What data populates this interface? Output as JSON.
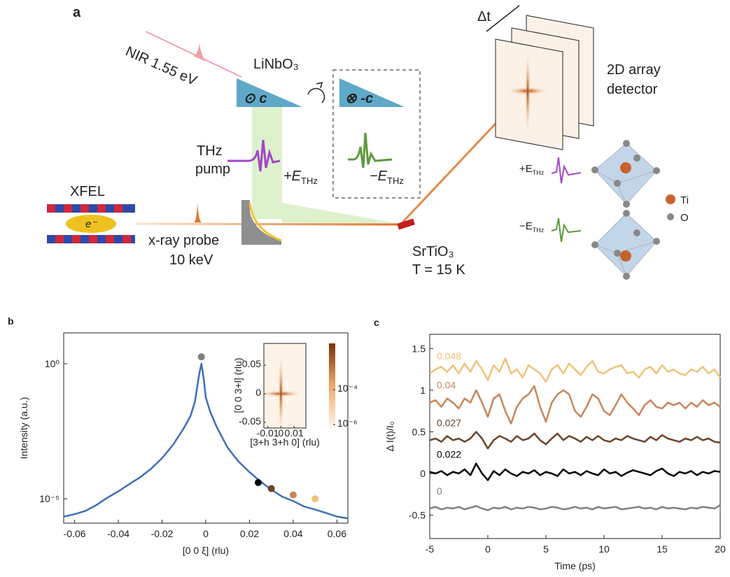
{
  "diagram": {
    "panel": "a",
    "nir": "NIR 1.55 eV",
    "crystal": "LiNbO₃",
    "axis_plus": "⊙ c",
    "axis_minus": "⊗ -c",
    "thz_pump": [
      "THz",
      "pump"
    ],
    "field_plus": {
      "sign": "+E",
      "sub": "THz"
    },
    "field_minus": {
      "sign": "−E",
      "sub": "THz"
    },
    "xfel": "XFEL",
    "electron": "e⁻",
    "probe": [
      "x-ray probe",
      "10 keV"
    ],
    "sample": [
      "SrTiO₃",
      "T = 15 K"
    ],
    "delay": "Δt",
    "detector": [
      "2D array",
      "detector"
    ],
    "small_plus": {
      "sign": "+E",
      "sub": "THz"
    },
    "small_minus": {
      "sign": "−E",
      "sub": "THz"
    },
    "atoms": [
      "Ti",
      "O"
    ]
  },
  "chart_data": [
    {
      "type": "line",
      "panel": "b",
      "xlabel": "[0  0 ξ] (rlu)",
      "ylabel": "Intensity (a.u.)",
      "log_y": true,
      "xlim": [
        -0.065,
        0.065
      ],
      "ylim": [
        1.26e-06,
        13.8
      ],
      "xticks": [
        -0.06,
        -0.04,
        -0.02,
        0,
        0.02,
        0.04,
        0.06
      ],
      "yticks": [
        {
          "value": 1e-05,
          "label": "10⁻⁵"
        },
        {
          "value": 1,
          "label": "10⁰"
        }
      ],
      "x": [
        -0.065,
        -0.06,
        -0.055,
        -0.05,
        -0.045,
        -0.04,
        -0.035,
        -0.03,
        -0.025,
        -0.02,
        -0.015,
        -0.01,
        -0.007,
        -0.005,
        -0.003,
        -0.002,
        -0.001,
        0,
        0.002,
        0.005,
        0.01,
        0.015,
        0.02,
        0.025,
        0.03,
        0.035,
        0.04,
        0.045,
        0.05,
        0.055,
        0.06,
        0.065
      ],
      "series": [
        {
          "color": "#3d6fb8",
          "values": [
            2.2e-06,
            2.7e-06,
            3.6e-06,
            5.9e-06,
            1.1e-05,
            1.9e-05,
            3.5e-05,
            6.3e-05,
            0.00013,
            0.00032,
            0.001,
            0.0042,
            0.0115,
            0.038,
            0.41,
            1,
            0.3,
            0.057,
            0.017,
            0.0046,
            0.00078,
            0.00024,
            9.7e-05,
            4.4e-05,
            2.2e-05,
            1.2e-05,
            8.3e-06,
            5.2e-06,
            4e-06,
            3e-06,
            2.2e-06,
            1.9e-06
          ]
        }
      ],
      "points": {
        "x": [
          -0.002,
          0.024,
          0.03,
          0.04,
          0.05
        ],
        "values": [
          1.8,
          4e-05,
          2.4e-05,
          1.4e-05,
          1e-05
        ],
        "colors": [
          "#808080",
          "#000000",
          "#6b4328",
          "#c8865a",
          "#efc27a"
        ]
      },
      "inset": {
        "xlabel": "[3+h 3+h 0] (rlu)",
        "ylabel": "[0 0 3+l] (rlu)",
        "xlim": [
          -0.013,
          0.019
        ],
        "ylim": [
          -0.06,
          0.088
        ],
        "xticks": [
          -0.01,
          0,
          0.01
        ],
        "yticks": [
          -0.05,
          0,
          0.05
        ],
        "clim": [
          6.3e-07,
          0.044
        ],
        "cticks": [
          {
            "value": 1e-06,
            "label": "10⁻⁶"
          },
          {
            "value": 0.0001,
            "label": "10⁻⁴"
          }
        ]
      }
    },
    {
      "type": "line",
      "panel": "c",
      "xlabel": "Time (ps)",
      "ylabel": "Δ I(t)/I₀",
      "xlim": [
        -5,
        20
      ],
      "ylim": [
        -0.78,
        1.67
      ],
      "xticks": [
        -5,
        0,
        5,
        10,
        15,
        20
      ],
      "yticks": [
        -0.5,
        0,
        0.5,
        1,
        1.5
      ],
      "x": [
        -5,
        -4.5,
        -4,
        -3.5,
        -3,
        -2.5,
        -2,
        -1.5,
        -1,
        -0.5,
        0,
        0.5,
        1,
        1.5,
        2,
        2.5,
        3,
        3.5,
        4,
        4.5,
        5,
        5.5,
        6,
        6.5,
        7,
        7.5,
        8,
        8.5,
        9,
        9.5,
        10,
        10.5,
        11,
        11.5,
        12,
        12.5,
        13,
        13.5,
        14,
        14.5,
        15,
        15.5,
        16,
        16.5,
        17,
        17.5,
        18,
        18.5,
        19,
        19.5,
        20
      ],
      "series": [
        {
          "name": "0.048",
          "color": "#efc27a",
          "values": [
            1.2,
            1.25,
            1.28,
            1.22,
            1.3,
            1.2,
            1.32,
            1.22,
            1.35,
            1.25,
            1.12,
            1.3,
            1.22,
            1.38,
            1.2,
            1.25,
            1.15,
            1.3,
            1.25,
            1.2,
            1.1,
            1.25,
            1.3,
            1.2,
            1.32,
            1.25,
            1.18,
            1.28,
            1.35,
            1.22,
            1.2,
            1.25,
            1.28,
            1.3,
            1.2,
            1.22,
            1.15,
            1.25,
            1.28,
            1.2,
            1.3,
            1.22,
            1.25,
            1.2,
            1.18,
            1.25,
            1.22,
            1.28,
            1.2,
            1.25,
            1.15
          ]
        },
        {
          "name": "0.04",
          "color": "#c8865a",
          "values": [
            0.85,
            0.88,
            0.8,
            0.9,
            0.85,
            0.78,
            0.9,
            0.85,
            1.0,
            0.85,
            0.68,
            0.9,
            0.95,
            0.75,
            0.6,
            0.8,
            0.9,
            0.95,
            1.05,
            0.8,
            0.62,
            0.85,
            0.95,
            1.0,
            0.95,
            0.75,
            0.68,
            0.8,
            0.95,
            0.9,
            0.75,
            0.7,
            0.82,
            0.95,
            0.85,
            0.78,
            0.7,
            0.82,
            0.88,
            0.8,
            0.78,
            0.85,
            0.82,
            0.85,
            0.78,
            0.85,
            0.8,
            0.88,
            0.82,
            0.85,
            0.8
          ]
        },
        {
          "name": "0.027",
          "color": "#6b4328",
          "values": [
            0.4,
            0.42,
            0.38,
            0.45,
            0.4,
            0.42,
            0.38,
            0.42,
            0.5,
            0.42,
            0.3,
            0.4,
            0.45,
            0.42,
            0.38,
            0.45,
            0.4,
            0.42,
            0.48,
            0.4,
            0.35,
            0.42,
            0.48,
            0.4,
            0.45,
            0.42,
            0.38,
            0.44,
            0.4,
            0.45,
            0.4,
            0.38,
            0.42,
            0.4,
            0.45,
            0.42,
            0.4,
            0.38,
            0.44,
            0.4,
            0.46,
            0.42,
            0.4,
            0.38,
            0.42,
            0.4,
            0.44,
            0.4,
            0.42,
            0.38,
            0.37
          ]
        },
        {
          "name": "0.022",
          "color": "#000000",
          "values": [
            0.02,
            0.0,
            0.03,
            -0.02,
            0.02,
            0.0,
            0.05,
            -0.02,
            0.12,
            0.0,
            -0.08,
            0.03,
            -0.02,
            0.05,
            0.0,
            -0.03,
            0.02,
            0.0,
            0.04,
            -0.02,
            0.02,
            0.0,
            -0.03,
            0.05,
            0.0,
            0.02,
            -0.02,
            0.03,
            0.0,
            -0.02,
            0.05,
            0.0,
            0.02,
            -0.03,
            0.01,
            0.04,
            0.02,
            0.0,
            -0.02,
            0.03,
            0.06,
            0.0,
            -0.03,
            0.02,
            0.0,
            0.03,
            -0.02,
            0.02,
            0.0,
            0.03,
            0.02
          ]
        },
        {
          "name": "0",
          "color": "#808080",
          "values": [
            -0.42,
            -0.4,
            -0.43,
            -0.41,
            -0.42,
            -0.4,
            -0.43,
            -0.41,
            -0.39,
            -0.42,
            -0.44,
            -0.41,
            -0.42,
            -0.4,
            -0.43,
            -0.41,
            -0.42,
            -0.4,
            -0.41,
            -0.43,
            -0.42,
            -0.4,
            -0.41,
            -0.43,
            -0.42,
            -0.4,
            -0.42,
            -0.41,
            -0.43,
            -0.4,
            -0.42,
            -0.41,
            -0.4,
            -0.43,
            -0.42,
            -0.41,
            -0.4,
            -0.42,
            -0.41,
            -0.43,
            -0.4,
            -0.42,
            -0.41,
            -0.42,
            -0.43,
            -0.41,
            -0.42,
            -0.4,
            -0.41,
            -0.42,
            -0.38
          ]
        }
      ]
    }
  ]
}
